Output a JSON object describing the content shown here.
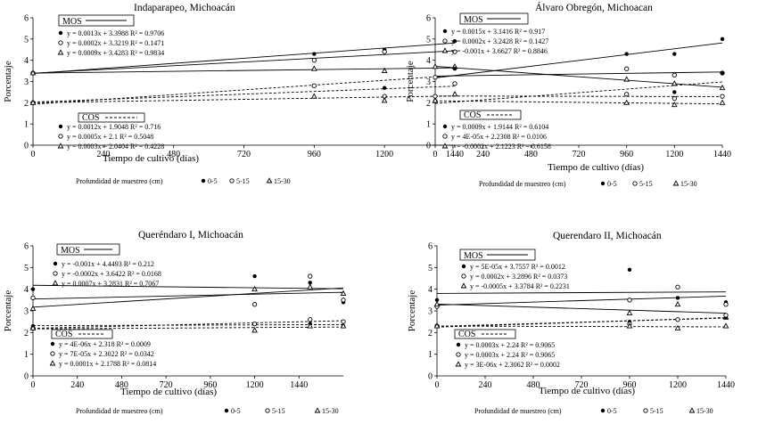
{
  "figure": {
    "xlabel": "Tiempo de cultivo (días)",
    "ylabel": "Porcentaje",
    "depth_label": "Profundidad de muestreo (cm)",
    "depths": [
      "0-5",
      "5-15",
      "15-30"
    ],
    "mos_label": "MOS",
    "cos_label": "COS"
  },
  "chart_data": [
    {
      "type": "scatter",
      "title": "Indaparapeo, Michoacán",
      "xlabel": "Tiempo de cultivo (días)",
      "ylabel": "Porcentaje",
      "xlim": [
        0,
        1440
      ],
      "ylim": [
        0,
        6
      ],
      "xticks": [
        0,
        240,
        480,
        720,
        960,
        1200,
        1440
      ],
      "yticks": [
        0,
        1,
        2,
        3,
        4,
        5,
        6
      ],
      "mos": {
        "label": "MOS",
        "equations": [
          "y = 0.0013x + 3.3988  R² = 0.9706",
          "y = 0.0002x + 3.3219  R² = 0.1471",
          "y = 0.0009x + 3.4283  R² = 0.9834"
        ],
        "series": [
          {
            "name": "0-5",
            "marker": "dot",
            "x": [
              0,
              960,
              1200,
              1440
            ],
            "y": [
              3.4,
              4.3,
              4.5,
              4.9
            ]
          },
          {
            "name": "5-15",
            "marker": "circle",
            "x": [
              0,
              960,
              1200,
              1440
            ],
            "y": [
              3.4,
              4.0,
              4.4,
              4.4
            ]
          },
          {
            "name": "15-30",
            "marker": "triangle",
            "x": [
              0,
              960,
              1200,
              1440
            ],
            "y": [
              3.4,
              3.6,
              3.5,
              3.7
            ]
          }
        ]
      },
      "cos": {
        "label": "COS",
        "equations": [
          "y = 0.0012x + 1.9048  R² = 0.716",
          "y = 0.0005x + 2.1  R² = 0.5048",
          "y = 0.0003x + 2.0404  R² = 0.4228"
        ],
        "series": [
          {
            "name": "0-5",
            "marker": "dot",
            "x": [
              0,
              960,
              1200,
              1440
            ],
            "y": [
              2.0,
              2.8,
              2.7,
              3.6
            ]
          },
          {
            "name": "5-15",
            "marker": "circle",
            "x": [
              0,
              960,
              1200,
              1440
            ],
            "y": [
              2.0,
              2.8,
              2.3,
              2.9
            ]
          },
          {
            "name": "15-30",
            "marker": "triangle",
            "x": [
              0,
              960,
              1200,
              1440
            ],
            "y": [
              2.0,
              2.3,
              2.1,
              2.4
            ]
          }
        ]
      }
    },
    {
      "type": "scatter",
      "title": "Álvaro Obregón, Michoacan",
      "xlabel": "Tiempo de cultivo (días)",
      "ylabel": "Porcentaje",
      "xlim": [
        0,
        1440
      ],
      "ylim": [
        0,
        6
      ],
      "xticks": [
        0,
        240,
        480,
        720,
        960,
        1200,
        1440
      ],
      "yticks": [
        0,
        1,
        2,
        3,
        4,
        5,
        6
      ],
      "mos": {
        "label": "MOS",
        "equations": [
          "y = 0.0015x + 3.1416  R² = 0.917",
          "y = 0.0002x + 3.2428  R² = 0.1427",
          "y = -0.001x + 3.6627  R² = 0.8846"
        ],
        "series": [
          {
            "name": "0-5",
            "marker": "dot",
            "x": [
              0,
              960,
              1200,
              1440
            ],
            "y": [
              3.2,
              4.3,
              4.3,
              5.0
            ]
          },
          {
            "name": "5-15",
            "marker": "circle",
            "x": [
              0,
              960,
              1200,
              1440
            ],
            "y": [
              3.2,
              3.6,
              3.3,
              3.4
            ]
          },
          {
            "name": "15-30",
            "marker": "triangle",
            "x": [
              0,
              960,
              1200,
              1440
            ],
            "y": [
              3.7,
              3.1,
              2.9,
              2.7
            ]
          }
        ]
      },
      "cos": {
        "label": "COS",
        "equations": [
          "y = 0.0009x + 1.9144  R² = 0.6104",
          "y = 4E-05x + 2.2308  R² = 0.0106",
          "y = -0.0002x + 2.1223  R² = 0.6158"
        ],
        "series": [
          {
            "name": "0-5",
            "marker": "dot",
            "x": [
              0,
              960,
              1200,
              1440
            ],
            "y": [
              2.1,
              2.4,
              2.5,
              3.4
            ]
          },
          {
            "name": "5-15",
            "marker": "circle",
            "x": [
              0,
              960,
              1200,
              1440
            ],
            "y": [
              2.3,
              2.4,
              2.2,
              2.3
            ]
          },
          {
            "name": "15-30",
            "marker": "triangle",
            "x": [
              0,
              960,
              1200,
              1440
            ],
            "y": [
              2.1,
              2.0,
              1.9,
              2.0
            ]
          }
        ]
      }
    },
    {
      "type": "scatter",
      "title": "Queréndaro I, Michoacán",
      "xlabel": "Tiempo de cultivo (días)",
      "ylabel": "Porcentaje",
      "xlim": [
        0,
        1680
      ],
      "ylim": [
        0,
        6
      ],
      "xticks": [
        0,
        240,
        480,
        720,
        960,
        1200,
        1440
      ],
      "yticks": [
        0,
        1,
        2,
        3,
        4,
        5,
        6
      ],
      "mos": {
        "label": "MOS",
        "equations": [
          "y = -0.001x + 4.4493  R² = 0.212",
          "y = -0.0002x + 3.6422  R² = 0.0168",
          "y = 0.0007x + 3.2831  R² = 0.7067"
        ],
        "series": [
          {
            "name": "0-5",
            "marker": "dot",
            "x": [
              0,
              1200,
              1500,
              1680
            ],
            "y": [
              4.0,
              4.6,
              4.3,
              3.4
            ]
          },
          {
            "name": "5-15",
            "marker": "circle",
            "x": [
              0,
              1200,
              1500,
              1680
            ],
            "y": [
              3.6,
              3.3,
              4.6,
              3.5
            ]
          },
          {
            "name": "15-30",
            "marker": "triangle",
            "x": [
              0,
              1200,
              1500,
              1680
            ],
            "y": [
              3.1,
              4.0,
              4.1,
              3.8
            ]
          }
        ]
      },
      "cos": {
        "label": "COS",
        "equations": [
          "y = 4E-06x + 2.318  R² = 0.0009",
          "y = 7E-05x + 2.3022  R² = 0.0342",
          "y = 0.0001x + 2.1788  R² = 0.0814"
        ],
        "series": [
          {
            "name": "0-5",
            "marker": "dot",
            "x": [
              0,
              1200,
              1500,
              1680
            ],
            "y": [
              2.3,
              2.4,
              2.4,
              2.3
            ]
          },
          {
            "name": "5-15",
            "marker": "circle",
            "x": [
              0,
              1200,
              1500,
              1680
            ],
            "y": [
              2.2,
              2.4,
              2.6,
              2.5
            ]
          },
          {
            "name": "15-30",
            "marker": "triangle",
            "x": [
              0,
              1200,
              1500,
              1680
            ],
            "y": [
              2.2,
              2.1,
              2.3,
              2.3
            ]
          }
        ]
      }
    },
    {
      "type": "scatter",
      "title": "Querendaro II, Michoacán",
      "xlabel": "Tiempo de cultivo (días)",
      "ylabel": "Porcentaje",
      "xlim": [
        0,
        1440
      ],
      "ylim": [
        0,
        6
      ],
      "xticks": [
        0,
        240,
        480,
        720,
        960,
        1200,
        1440
      ],
      "yticks": [
        0,
        1,
        2,
        3,
        4,
        5,
        6
      ],
      "mos": {
        "label": "MOS",
        "equations": [
          "y = 5E-05x + 3.7557  R² = 0.0012",
          "y = 0.0002x + 3.2896  R² = 0.0373",
          "y = -0.0005x + 3.3784  R² = 0.2231"
        ],
        "series": [
          {
            "name": "0-5",
            "marker": "dot",
            "x": [
              0,
              960,
              1200,
              1440
            ],
            "y": [
              3.5,
              4.9,
              3.6,
              3.4
            ]
          },
          {
            "name": "5-15",
            "marker": "circle",
            "x": [
              0,
              960,
              1200,
              1440
            ],
            "y": [
              3.2,
              3.5,
              4.1,
              3.3
            ]
          },
          {
            "name": "15-30",
            "marker": "triangle",
            "x": [
              0,
              960,
              1200,
              1440
            ],
            "y": [
              3.3,
              2.9,
              3.3,
              2.7
            ]
          }
        ]
      },
      "cos": {
        "label": "COS",
        "equations": [
          "y = 0.0003x + 2.24  R² = 0.9065",
          "y = 0.0003x + 2.24  R² = 0.9065",
          "y = 3E-06x + 2.3062  R² = 0.0002"
        ],
        "series": [
          {
            "name": "0-5",
            "marker": "dot",
            "x": [
              0,
              960,
              1200,
              1440
            ],
            "y": [
              2.3,
              2.5,
              2.6,
              2.7
            ]
          },
          {
            "name": "5-15",
            "marker": "circle",
            "x": [
              0,
              960,
              1200,
              1440
            ],
            "y": [
              2.3,
              2.4,
              2.6,
              2.8
            ]
          },
          {
            "name": "15-30",
            "marker": "triangle",
            "x": [
              0,
              960,
              1200,
              1440
            ],
            "y": [
              2.3,
              2.3,
              2.2,
              2.3
            ]
          }
        ]
      }
    }
  ]
}
